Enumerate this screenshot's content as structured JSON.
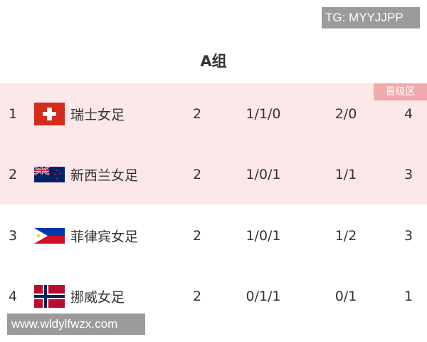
{
  "group_title": "A组",
  "qualify_badge": "晋级区",
  "colors": {
    "qualify_band": "#fce8e8",
    "badge": "#f2a9ab"
  },
  "rows": [
    {
      "rank": "1",
      "flag": "switzerland-flag",
      "team": "瑞士女足",
      "played": "2",
      "wdl": "1/1/0",
      "goals": "2/0",
      "points": "4"
    },
    {
      "rank": "2",
      "flag": "new-zealand-flag",
      "team": "新西兰女足",
      "played": "2",
      "wdl": "1/0/1",
      "goals": "1/1",
      "points": "3"
    },
    {
      "rank": "3",
      "flag": "philippines-flag",
      "team": "菲律宾女足",
      "played": "2",
      "wdl": "1/0/1",
      "goals": "1/2",
      "points": "3"
    },
    {
      "rank": "4",
      "flag": "norway-flag",
      "team": "挪威女足",
      "played": "2",
      "wdl": "0/1/1",
      "goals": "0/1",
      "points": "1"
    }
  ],
  "watermarks": {
    "top": "TG: MYYJJPP",
    "bottom": "www.wldylfwzx.com"
  }
}
